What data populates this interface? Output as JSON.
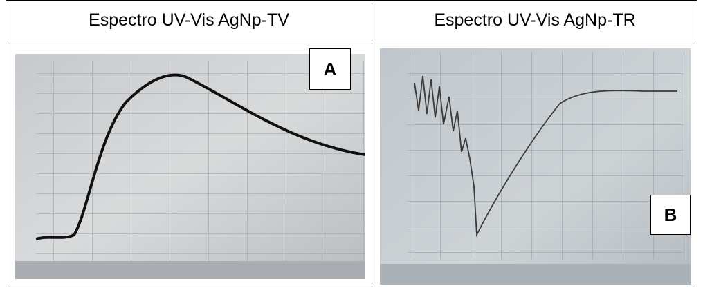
{
  "table": {
    "headers": [
      "Espectro UV-Vis AgNp-TV",
      "Espectro UV-Vis AgNp-TR"
    ]
  },
  "panels": [
    {
      "label": "A"
    },
    {
      "label": "B"
    }
  ]
}
